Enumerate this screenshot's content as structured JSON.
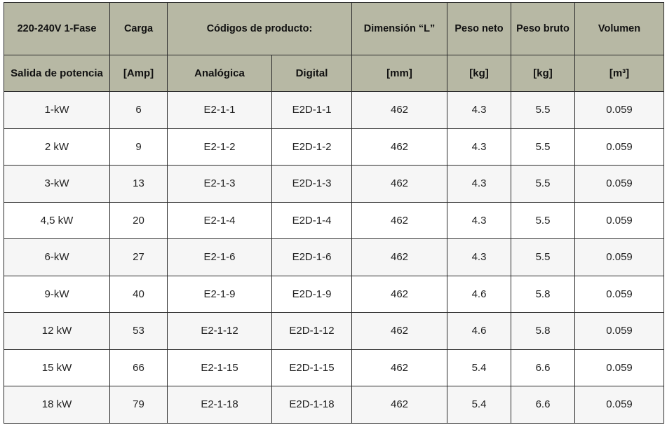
{
  "header": {
    "row1": {
      "voltage": "220-240V 1-Fase",
      "load": "Carga",
      "product_codes": "Códigos de producto:",
      "dimension": "Dimensión “L”",
      "net_weight": "Peso neto",
      "gross_weight": "Peso bruto",
      "volume": "Volumen"
    },
    "row2": {
      "power_output": "Salida de potencia",
      "load_unit": "[Amp]",
      "analog": "Analógica",
      "digital": "Digital",
      "dimension_unit": "[mm]",
      "net_weight_unit": "[kg]",
      "gross_weight_unit": "[kg]",
      "volume_unit": "[m³]"
    }
  },
  "rows": [
    {
      "power": "1-kW",
      "amp": "6",
      "analog": "E2-1-1",
      "digital": "E2D-1-1",
      "dim": "462",
      "net": "4.3",
      "gross": "5.5",
      "vol": "0.059"
    },
    {
      "power": "2 kW",
      "amp": "9",
      "analog": "E2-1-2",
      "digital": "E2D-1-2",
      "dim": "462",
      "net": "4.3",
      "gross": "5.5",
      "vol": "0.059"
    },
    {
      "power": "3-kW",
      "amp": "13",
      "analog": "E2-1-3",
      "digital": "E2D-1-3",
      "dim": "462",
      "net": "4.3",
      "gross": "5.5",
      "vol": "0.059"
    },
    {
      "power": "4,5 kW",
      "amp": "20",
      "analog": "E2-1-4",
      "digital": "E2D-1-4",
      "dim": "462",
      "net": "4.3",
      "gross": "5.5",
      "vol": "0.059"
    },
    {
      "power": "6-kW",
      "amp": "27",
      "analog": "E2-1-6",
      "digital": "E2D-1-6",
      "dim": "462",
      "net": "4.3",
      "gross": "5.5",
      "vol": "0.059"
    },
    {
      "power": "9-kW",
      "amp": "40",
      "analog": "E2-1-9",
      "digital": "E2D-1-9",
      "dim": "462",
      "net": "4.6",
      "gross": "5.8",
      "vol": "0.059"
    },
    {
      "power": "12 kW",
      "amp": "53",
      "analog": "E2-1-12",
      "digital": "E2D-1-12",
      "dim": "462",
      "net": "4.6",
      "gross": "5.8",
      "vol": "0.059"
    },
    {
      "power": "15 kW",
      "amp": "66",
      "analog": "E2-1-15",
      "digital": "E2D-1-15",
      "dim": "462",
      "net": "5.4",
      "gross": "6.6",
      "vol": "0.059"
    },
    {
      "power": "18 kW",
      "amp": "79",
      "analog": "E2-1-18",
      "digital": "E2D-1-18",
      "dim": "462",
      "net": "5.4",
      "gross": "6.6",
      "vol": "0.059"
    }
  ],
  "colors": {
    "header_bg": "#b7b8a4",
    "row_odd_bg": "#f6f6f6",
    "row_even_bg": "#ffffff",
    "border": "#2b2b2b"
  }
}
